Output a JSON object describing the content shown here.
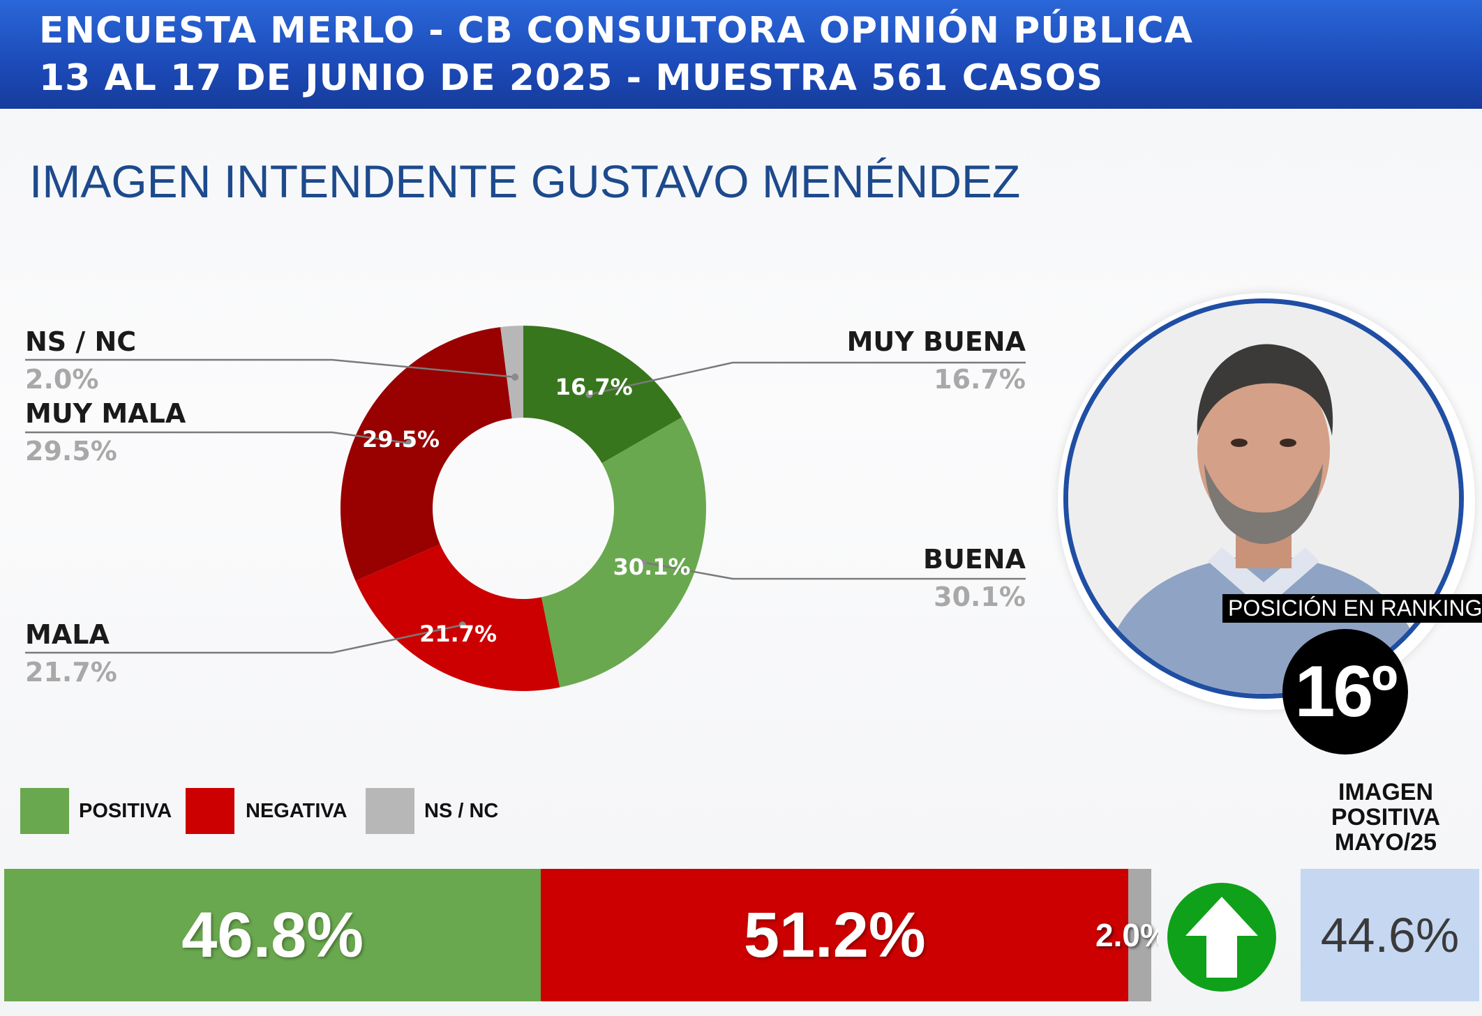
{
  "header": {
    "line1": "ENCUESTA MERLO - CB CONSULTORA OPINIÓN PÚBLICA",
    "line2": "13 AL 17 DE JUNIO DE 2025 - MUESTRA 561 CASOS"
  },
  "page_title": "IMAGEN INTENDENTE  GUSTAVO MENÉNDEZ",
  "colors": {
    "muy_buena": "#38761d",
    "buena": "#6aa84f",
    "mala": "#cc0000",
    "muy_mala": "#990000",
    "ns_nc": "#b7b7b7",
    "header_blue": "#1c4ab8",
    "title_blue": "#1d4a8c",
    "arrow_green": "#0fa11a",
    "prev_box": "#c6d7f2"
  },
  "ranking": {
    "label": "POSICIÓN EN RANKING",
    "value": "16º"
  },
  "legend": [
    {
      "label": "POSITIVA",
      "color": "#6aa84f"
    },
    {
      "label": "NEGATIVA",
      "color": "#cc0000"
    },
    {
      "label": "NS / NC",
      "color": "#b7b7b7"
    }
  ],
  "summary": {
    "positiva": "46.8%",
    "negativa": "51.2%",
    "ns_nc": "2.0%",
    "trend_icon": "up-arrow-icon",
    "previous_title": "IMAGEN POSITIVA MAYO/25",
    "previous_value": "44.6%"
  },
  "chart_data": [
    {
      "type": "pie",
      "variant": "donut",
      "title": "IMAGEN INTENDENTE  GUSTAVO MENÉNDEZ",
      "categories": [
        "MUY BUENA",
        "BUENA",
        "MALA",
        "MUY MALA",
        "NS / NC"
      ],
      "values": [
        16.7,
        30.1,
        21.7,
        29.5,
        2.0
      ],
      "labels": [
        "16.7%",
        "30.1%",
        "21.7%",
        "29.5%",
        "2.0%"
      ],
      "colors": [
        "#38761d",
        "#6aa84f",
        "#cc0000",
        "#990000",
        "#b7b7b7"
      ]
    },
    {
      "type": "bar",
      "orientation": "horizontal-stacked",
      "categories": [
        "POSITIVA",
        "NEGATIVA",
        "NS / NC"
      ],
      "values": [
        46.8,
        51.2,
        2.0
      ],
      "labels": [
        "46.8%",
        "51.2%",
        "2.0%"
      ],
      "colors": [
        "#6aa84f",
        "#cc0000",
        "#b7b7b7"
      ]
    }
  ]
}
